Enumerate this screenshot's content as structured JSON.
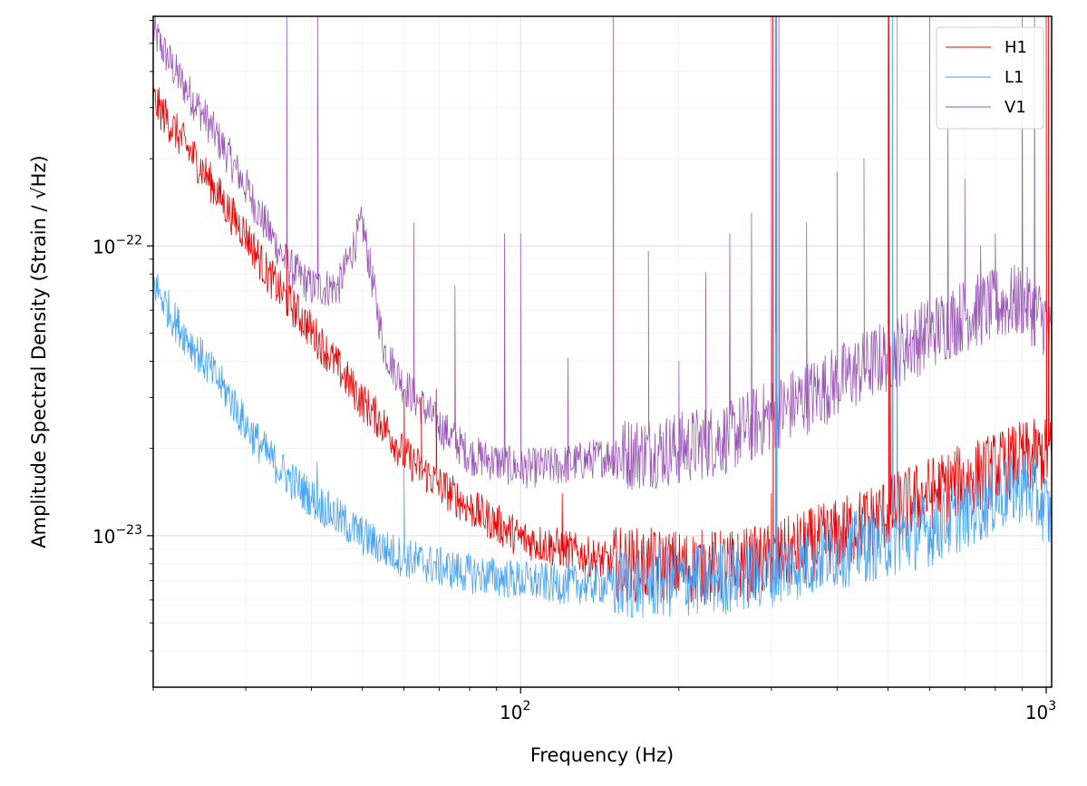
{
  "chart_data": {
    "type": "line",
    "xlabel": "Frequency (Hz)",
    "ylabel": "Amplitude Spectral Density (Strain / √Hz)",
    "x_scale": "log",
    "y_scale": "log",
    "xlim": [
      20,
      1024
    ],
    "ylim": [
      3e-24,
      6.2e-22
    ],
    "x_ticks": [
      {
        "value": 100,
        "label_base": "10",
        "label_exp": "2"
      },
      {
        "value": 1000,
        "label_base": "10",
        "label_exp": "3"
      }
    ],
    "y_ticks": [
      {
        "value": 1e-23,
        "label_base": "10",
        "label_exp": "−23"
      },
      {
        "value": 1e-22,
        "label_base": "10",
        "label_exp": "−22"
      }
    ],
    "grid": true,
    "legend_position": "top-right",
    "series": [
      {
        "name": "H1",
        "color": "#ee0000",
        "x": [
          20,
          22,
          25,
          28,
          30,
          33,
          36,
          40,
          45,
          50,
          55,
          60,
          70,
          80,
          90,
          100,
          120,
          150,
          200,
          250,
          300,
          350,
          400,
          500,
          600,
          700,
          800,
          900,
          1000
        ],
        "y": [
          3.2e-22,
          2.5e-22,
          1.8e-22,
          1.3e-22,
          1.1e-22,
          8e-23,
          6.5e-23,
          5.1e-23,
          3.8e-23,
          2.9e-23,
          2.4e-23,
          1.9e-23,
          1.5e-23,
          1.25e-23,
          1.1e-23,
          9.8e-24,
          9e-24,
          8e-24,
          7.8e-24,
          7.8e-24,
          8.2e-24,
          9.2e-24,
          1e-23,
          1.2e-23,
          1.4e-23,
          1.55e-23,
          1.7e-23,
          1.85e-23,
          1.9e-23
        ],
        "peaks": [
          {
            "f": 35.9,
            "y": 1e-22
          },
          {
            "f": 60,
            "y": 3.2e-23
          },
          {
            "f": 64.7,
            "y": 3e-23
          },
          {
            "f": 69.1,
            "y": 3.2e-23
          },
          {
            "f": 120,
            "y": 1.4e-23
          },
          {
            "f": 300,
            "y": 1.4e-23
          },
          {
            "f": 302,
            "y": 6.2e-22
          },
          {
            "f": 306,
            "y": 6.2e-22
          },
          {
            "f": 502,
            "y": 6.2e-22
          },
          {
            "f": 505,
            "y": 4.5e-23
          },
          {
            "f": 1000,
            "y": 6.2e-22
          },
          {
            "f": 1010,
            "y": 6.2e-22
          }
        ]
      },
      {
        "name": "L1",
        "color": "#47a3f5",
        "x": [
          20,
          22,
          25,
          28,
          30,
          33,
          36,
          40,
          45,
          50,
          55,
          60,
          70,
          80,
          90,
          100,
          120,
          150,
          200,
          250,
          300,
          350,
          400,
          500,
          600,
          700,
          800,
          900,
          1000,
          1024
        ],
        "y": [
          7.5e-23,
          5.5e-23,
          4e-23,
          3e-23,
          2.4e-23,
          1.9e-23,
          1.6e-23,
          1.35e-23,
          1.15e-23,
          1e-23,
          9e-24,
          8.4e-24,
          7.8e-24,
          7.4e-24,
          7.2e-24,
          7e-24,
          6.8e-24,
          6.8e-24,
          7e-24,
          7.2e-24,
          7.6e-24,
          8.2e-24,
          8.8e-24,
          9.6e-24,
          1.05e-23,
          1.2e-23,
          1.35e-23,
          1.5e-23,
          1.25e-23,
          1.1e-23
        ],
        "peaks": [
          {
            "f": 41,
            "y": 1.8e-23
          },
          {
            "f": 60,
            "y": 1.8e-23
          },
          {
            "f": 306,
            "y": 5e-23
          },
          {
            "f": 307,
            "y": 6.2e-22
          },
          {
            "f": 510,
            "y": 6.2e-22
          },
          {
            "f": 520,
            "y": 6.2e-22
          }
        ]
      },
      {
        "name": "V1",
        "color": "#9b59b6",
        "x": [
          20,
          22,
          25,
          28,
          30,
          33,
          36,
          40,
          45,
          50,
          55,
          60,
          70,
          80,
          90,
          100,
          120,
          150,
          200,
          250,
          300,
          350,
          400,
          450,
          500,
          600,
          700,
          800,
          900,
          1000,
          1024
        ],
        "y": [
          5.5e-22,
          4e-22,
          2.8e-22,
          2e-22,
          1.6e-22,
          1.15e-22,
          8.6e-23,
          7.2e-23,
          7.2e-23,
          1.2e-22,
          4.4e-23,
          3.3e-23,
          2.4e-23,
          1.9e-23,
          1.8e-23,
          1.7e-23,
          1.75e-23,
          1.9e-23,
          2e-23,
          2.2e-23,
          2.6e-23,
          3e-23,
          3.4e-23,
          3.8e-23,
          4.2e-23,
          5e-23,
          5.8e-23,
          6.2e-23,
          6.5e-23,
          5.5e-23,
          4.5e-23
        ],
        "peaks": [
          {
            "f": 35.9,
            "y": 6.2e-22
          },
          {
            "f": 41.1,
            "y": 6.2e-22
          },
          {
            "f": 62.6,
            "y": 1.2e-22
          },
          {
            "f": 75,
            "y": 7.3e-23
          },
          {
            "f": 93.2,
            "y": 1.1e-22
          },
          {
            "f": 100,
            "y": 1.1e-22
          },
          {
            "f": 123,
            "y": 4.1e-23
          },
          {
            "f": 150,
            "y": 6.2e-22
          },
          {
            "f": 175,
            "y": 9.6e-23
          },
          {
            "f": 200,
            "y": 4e-23
          },
          {
            "f": 225,
            "y": 8.1e-23
          },
          {
            "f": 250,
            "y": 1.1e-22
          },
          {
            "f": 275,
            "y": 1.3e-22
          },
          {
            "f": 300,
            "y": 6.2e-22
          },
          {
            "f": 310,
            "y": 6.2e-22
          },
          {
            "f": 350,
            "y": 1.2e-22
          },
          {
            "f": 400,
            "y": 1.8e-22
          },
          {
            "f": 450,
            "y": 2e-22
          },
          {
            "f": 500,
            "y": 6.2e-22
          },
          {
            "f": 600,
            "y": 6.2e-22
          },
          {
            "f": 650,
            "y": 2.7e-22
          },
          {
            "f": 700,
            "y": 1.7e-22
          },
          {
            "f": 750,
            "y": 1e-22
          },
          {
            "f": 800,
            "y": 1.1e-22
          },
          {
            "f": 900,
            "y": 6.2e-22
          },
          {
            "f": 950,
            "y": 6.2e-22
          }
        ]
      }
    ]
  }
}
